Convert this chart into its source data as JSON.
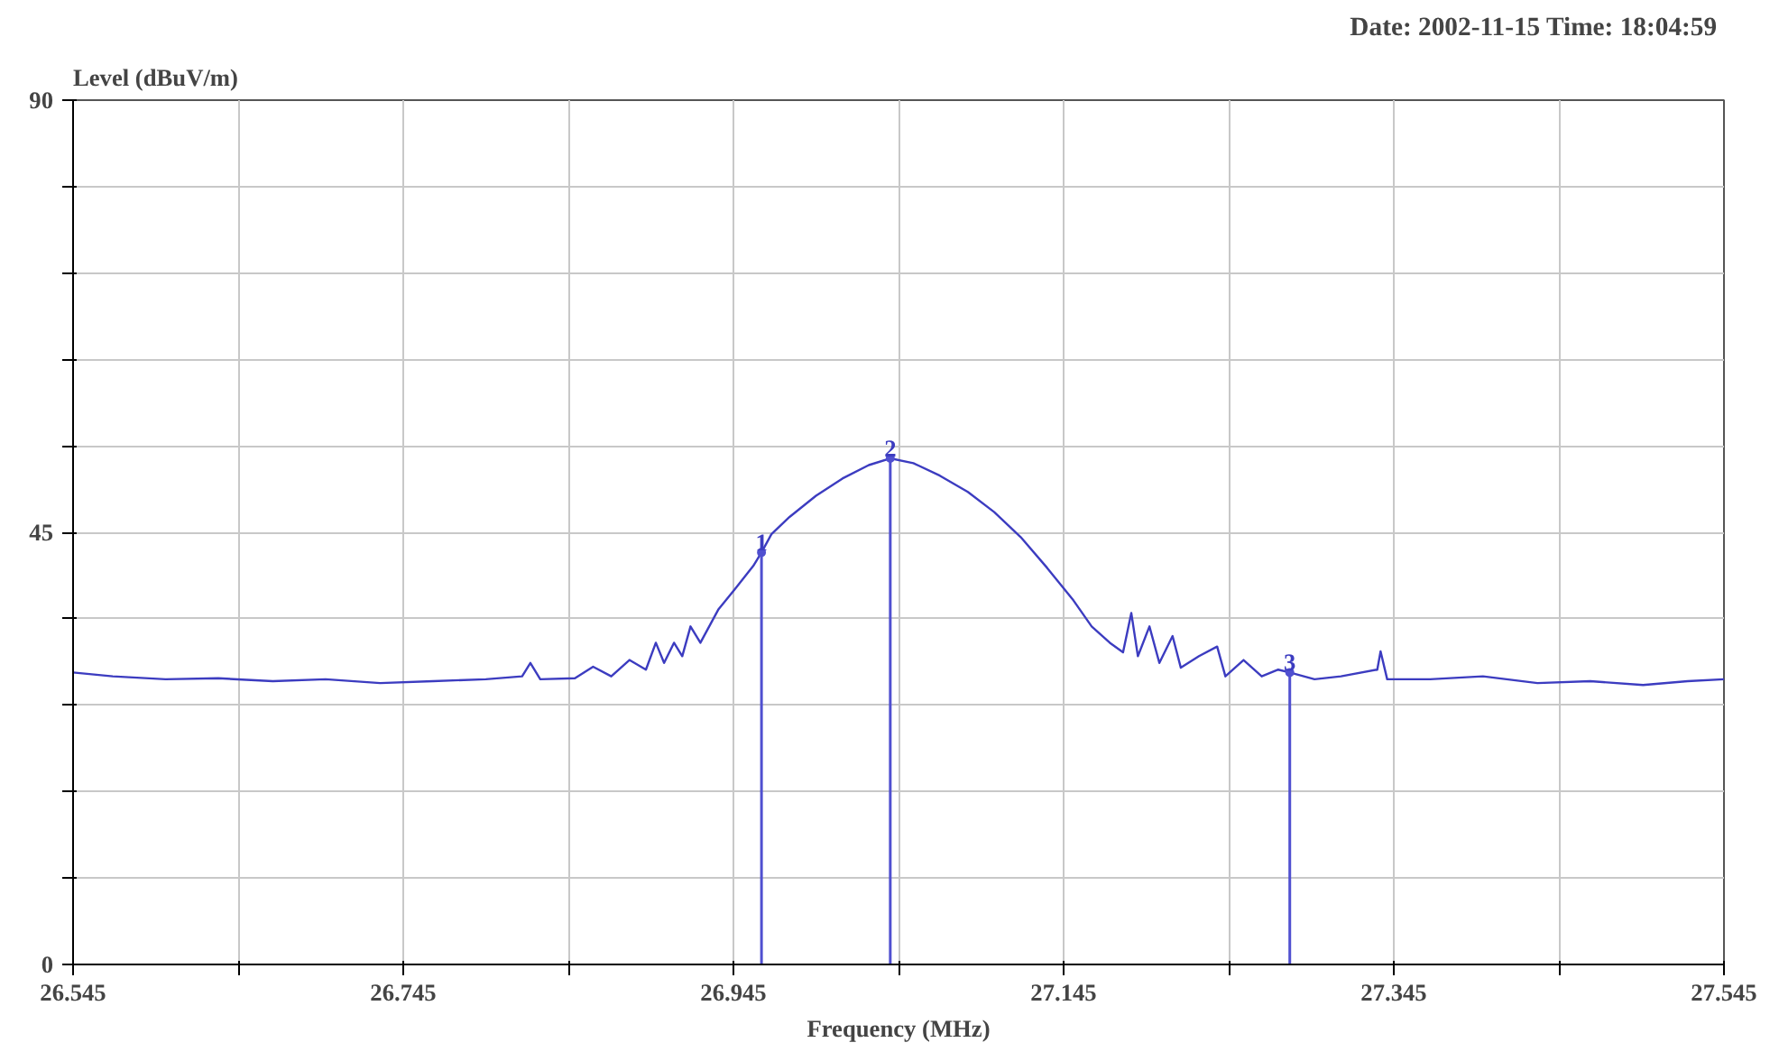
{
  "chart_data": {
    "type": "line",
    "title": "Date: 2002-11-15  Time: 18:04:59",
    "xlabel": "Frequency (MHz)",
    "ylabel": "Level (dBuV/m)",
    "xlim": [
      26.545,
      27.545
    ],
    "ylim": [
      0,
      90
    ],
    "xticks": [
      26.545,
      {
        "value": 26.645,
        "label": null
      },
      26.745,
      {
        "value": 26.845,
        "label": null
      },
      26.945,
      {
        "value": 27.045,
        "label": null
      },
      27.145,
      {
        "value": 27.245,
        "label": null
      },
      27.345,
      {
        "value": 27.445,
        "label": null
      },
      27.545
    ],
    "yticks": [
      0,
      {
        "value": 9,
        "label": null
      },
      {
        "value": 18,
        "label": null
      },
      {
        "value": 27,
        "label": null
      },
      {
        "value": 36,
        "label": null
      },
      45,
      {
        "value": 54,
        "label": null
      },
      {
        "value": 63,
        "label": null
      },
      {
        "value": 72,
        "label": null
      },
      {
        "value": 81,
        "label": null
      },
      90
    ],
    "grid": true,
    "line_style": "solid",
    "marker": "none",
    "series": [
      {
        "color": "#3c3cc0",
        "x": [
          26.545,
          26.569,
          26.601,
          26.633,
          26.666,
          26.698,
          26.731,
          26.763,
          26.795,
          26.817,
          26.822,
          26.828,
          26.849,
          26.86,
          26.871,
          26.882,
          26.892,
          26.898,
          26.903,
          26.909,
          26.914,
          26.919,
          26.925,
          26.936,
          26.946,
          26.957,
          26.962,
          26.968,
          26.979,
          26.995,
          27.011,
          27.027,
          27.04,
          27.054,
          27.07,
          27.087,
          27.103,
          27.119,
          27.135,
          27.151,
          27.162,
          27.173,
          27.181,
          27.186,
          27.19,
          27.197,
          27.203,
          27.211,
          27.216,
          27.227,
          27.238,
          27.243,
          27.254,
          27.265,
          27.275,
          27.282,
          27.297,
          27.313,
          27.335,
          27.337,
          27.341,
          27.367,
          27.399,
          27.432,
          27.464,
          27.496,
          27.523,
          27.545
        ],
        "values": [
          30.4,
          30.0,
          29.7,
          29.8,
          29.5,
          29.7,
          29.3,
          29.5,
          29.7,
          30.0,
          31.4,
          29.7,
          29.8,
          31.0,
          30.0,
          31.7,
          30.7,
          33.5,
          31.4,
          33.5,
          32.1,
          35.2,
          33.5,
          37.0,
          39.1,
          41.5,
          42.9,
          44.8,
          46.6,
          48.8,
          50.6,
          52.0,
          52.7,
          52.2,
          50.9,
          49.2,
          47.1,
          44.5,
          41.3,
          37.9,
          35.2,
          33.5,
          32.5,
          36.6,
          32.1,
          35.2,
          31.4,
          34.2,
          30.9,
          32.1,
          33.1,
          30.0,
          31.7,
          30.0,
          30.7,
          30.4,
          29.7,
          30.0,
          30.7,
          32.6,
          29.7,
          29.7,
          30.0,
          29.3,
          29.5,
          29.1,
          29.5,
          29.7
        ]
      },
      {
        "type": "lollipop",
        "marker": "circle",
        "color": "#5050d0",
        "x": [
          26.962,
          27.04,
          27.282
        ],
        "values": [
          42.9,
          52.7,
          30.4
        ]
      }
    ],
    "annotations": [
      {
        "text": "1",
        "x": 26.962,
        "y": 42.9
      },
      {
        "text": "2",
        "x": 27.04,
        "y": 52.7
      },
      {
        "text": "3",
        "x": 27.282,
        "y": 30.4
      }
    ]
  }
}
